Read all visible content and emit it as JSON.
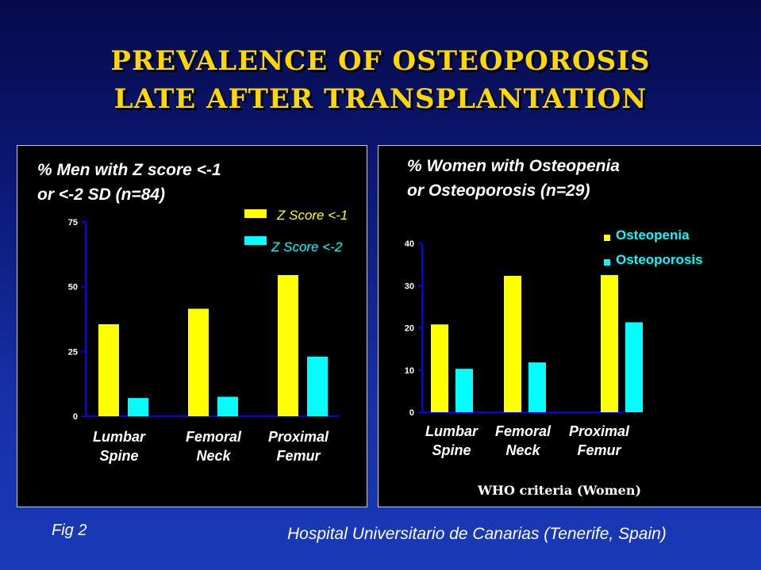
{
  "slide": {
    "title_line1": "PREVALENCE OF OSTEOPOROSIS",
    "title_line2": "LATE AFTER TRANSPLANTATION",
    "fig_label": "Fig 2",
    "source": "Hospital Universitario de Canarias (Tenerife, Spain)"
  },
  "colors": {
    "yellow": "#ffff00",
    "cyan": "#00ffff"
  },
  "chart_data": [
    {
      "type": "bar",
      "title_line1": "% Men with Z score <-1",
      "title_line2": "or <-2 SD (n=84)",
      "categories": [
        [
          "Lumbar",
          "Spine"
        ],
        [
          "Femoral",
          "Neck"
        ],
        [
          "Proximal",
          "Femur"
        ]
      ],
      "series": [
        {
          "name": "Z Score <-1",
          "color": "#ffff00",
          "values": [
            35.5,
            41.5,
            54.5
          ]
        },
        {
          "name": "Z Score <-2",
          "color": "#00ffff",
          "values": [
            7,
            7.5,
            23
          ]
        }
      ],
      "ylim": [
        0,
        75
      ],
      "yticks": [
        0,
        25,
        50,
        75
      ],
      "legend": "top-right"
    },
    {
      "type": "bar",
      "title_line1": "% Women with Osteopenia",
      "title_line2": "or Osteoporosis (n=29)",
      "categories": [
        [
          "Lumbar",
          "Spine"
        ],
        [
          "Femoral",
          "Neck"
        ],
        [
          "Proximal",
          "Femur"
        ]
      ],
      "series": [
        {
          "name": "Osteopenia",
          "color": "#ffff00",
          "values": [
            20.8,
            32.3,
            32.5
          ]
        },
        {
          "name": "Osteoporosis",
          "color": "#00ffff",
          "values": [
            10.3,
            11.8,
            21.3
          ]
        }
      ],
      "ylim": [
        0,
        40
      ],
      "yticks": [
        0,
        10,
        20,
        30,
        40
      ],
      "note": "WHO criteria (Women)",
      "legend": "top-right"
    }
  ]
}
